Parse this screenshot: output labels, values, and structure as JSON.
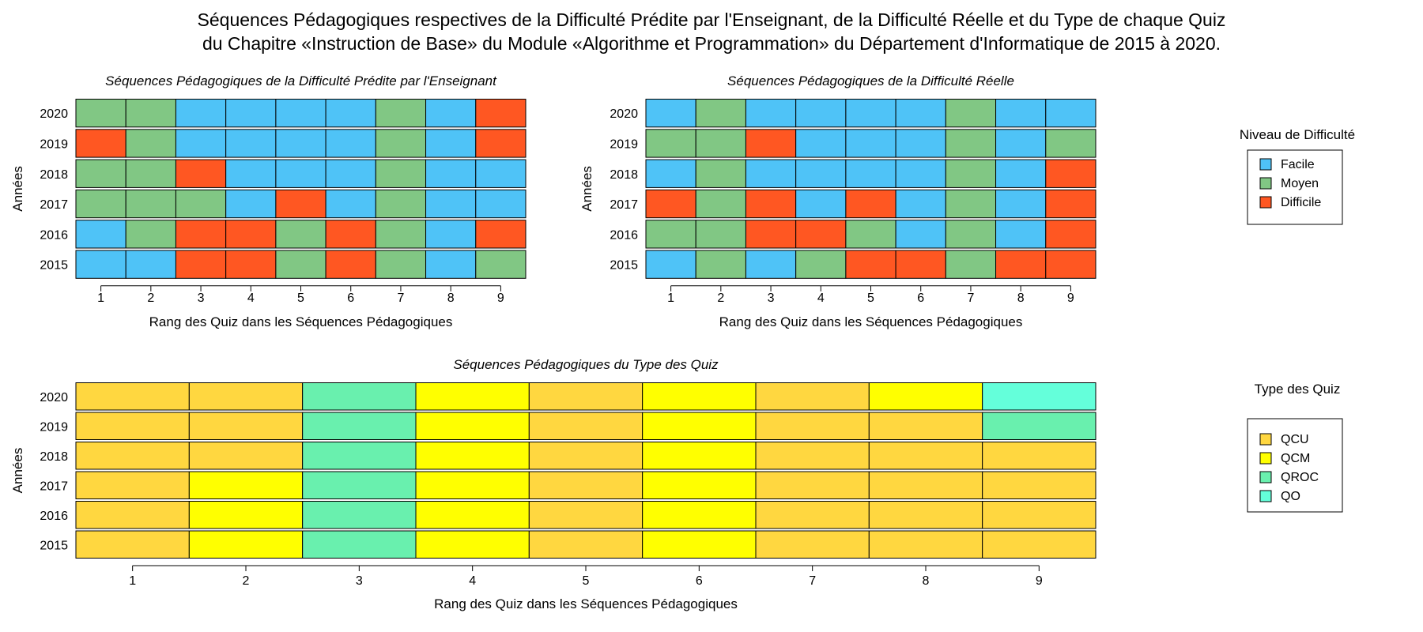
{
  "title_lines": [
    "Séquences Pédagogiques respectives de la Difficulté Prédite par l'Enseignant, de la Difficulté Réelle et du Type de chaque Quiz",
    "du Chapitre «Instruction de Base» du Module «Algorithme et Programmation» du Département d'Informatique de 2015 à 2020."
  ],
  "legends": {
    "difficulty": {
      "title": "Niveau de Difficulté",
      "items": [
        {
          "key": "F",
          "label": "Facile",
          "color": "#4fc3f7"
        },
        {
          "key": "M",
          "label": "Moyen",
          "color": "#81c784"
        },
        {
          "key": "D",
          "label": "Difficile",
          "color": "#ff5722"
        }
      ]
    },
    "type": {
      "title": "Type des Quiz",
      "items": [
        {
          "key": "QCU",
          "label": "QCU",
          "color": "#ffd740"
        },
        {
          "key": "QCM",
          "label": "QCM",
          "color": "#ffff00"
        },
        {
          "key": "QROC",
          "label": "QROC",
          "color": "#69f0ae"
        },
        {
          "key": "QO",
          "label": "QO",
          "color": "#64ffda"
        }
      ]
    }
  },
  "chart_data": [
    {
      "type": "heatmap",
      "id": "predicted",
      "title": "Séquences Pédagogiques de la Difficulté Prédite par l'Enseignant",
      "xlabel": "Rang des Quiz dans les Séquences Pédagogiques",
      "ylabel": "Années",
      "legend": "difficulty",
      "x": [
        "1",
        "2",
        "3",
        "4",
        "5",
        "6",
        "7",
        "8",
        "9"
      ],
      "y": [
        "2020",
        "2019",
        "2018",
        "2017",
        "2016",
        "2015"
      ],
      "values": [
        [
          "M",
          "M",
          "F",
          "F",
          "F",
          "F",
          "M",
          "F",
          "D"
        ],
        [
          "D",
          "M",
          "F",
          "F",
          "F",
          "F",
          "M",
          "F",
          "D"
        ],
        [
          "M",
          "M",
          "D",
          "F",
          "F",
          "F",
          "M",
          "F",
          "F"
        ],
        [
          "M",
          "M",
          "M",
          "F",
          "D",
          "F",
          "M",
          "F",
          "F"
        ],
        [
          "F",
          "M",
          "D",
          "D",
          "M",
          "D",
          "M",
          "F",
          "D"
        ],
        [
          "F",
          "F",
          "D",
          "D",
          "M",
          "D",
          "M",
          "F",
          "M"
        ]
      ]
    },
    {
      "type": "heatmap",
      "id": "actual",
      "title": "Séquences Pédagogiques de la Difficulté Réelle",
      "xlabel": "Rang des Quiz dans les Séquences Pédagogiques",
      "ylabel": "Années",
      "legend": "difficulty",
      "x": [
        "1",
        "2",
        "3",
        "4",
        "5",
        "6",
        "7",
        "8",
        "9"
      ],
      "y": [
        "2020",
        "2019",
        "2018",
        "2017",
        "2016",
        "2015"
      ],
      "values": [
        [
          "F",
          "M",
          "F",
          "F",
          "F",
          "F",
          "M",
          "F",
          "F"
        ],
        [
          "M",
          "M",
          "D",
          "F",
          "F",
          "F",
          "M",
          "F",
          "M"
        ],
        [
          "F",
          "M",
          "F",
          "F",
          "F",
          "F",
          "M",
          "F",
          "D"
        ],
        [
          "D",
          "M",
          "D",
          "F",
          "D",
          "F",
          "M",
          "F",
          "D"
        ],
        [
          "M",
          "M",
          "D",
          "D",
          "M",
          "F",
          "M",
          "F",
          "D"
        ],
        [
          "F",
          "M",
          "F",
          "M",
          "D",
          "D",
          "M",
          "D",
          "D"
        ]
      ]
    },
    {
      "type": "heatmap",
      "id": "quiztype",
      "title": "Séquences Pédagogiques du Type des Quiz",
      "xlabel": "Rang des Quiz dans les Séquences Pédagogiques",
      "ylabel": "Années",
      "legend": "type",
      "x": [
        "1",
        "2",
        "3",
        "4",
        "5",
        "6",
        "7",
        "8",
        "9"
      ],
      "y": [
        "2020",
        "2019",
        "2018",
        "2017",
        "2016",
        "2015"
      ],
      "values": [
        [
          "QCU",
          "QCU",
          "QROC",
          "QCM",
          "QCU",
          "QCM",
          "QCU",
          "QCM",
          "QO"
        ],
        [
          "QCU",
          "QCU",
          "QROC",
          "QCM",
          "QCU",
          "QCM",
          "QCU",
          "QCU",
          "QROC"
        ],
        [
          "QCU",
          "QCU",
          "QROC",
          "QCM",
          "QCU",
          "QCM",
          "QCU",
          "QCU",
          "QCU"
        ],
        [
          "QCU",
          "QCM",
          "QROC",
          "QCM",
          "QCU",
          "QCM",
          "QCU",
          "QCU",
          "QCU"
        ],
        [
          "QCU",
          "QCM",
          "QROC",
          "QCM",
          "QCU",
          "QCM",
          "QCU",
          "QCU",
          "QCU"
        ],
        [
          "QCU",
          "QCM",
          "QROC",
          "QCM",
          "QCU",
          "QCM",
          "QCU",
          "QCU",
          "QCU"
        ]
      ]
    }
  ]
}
